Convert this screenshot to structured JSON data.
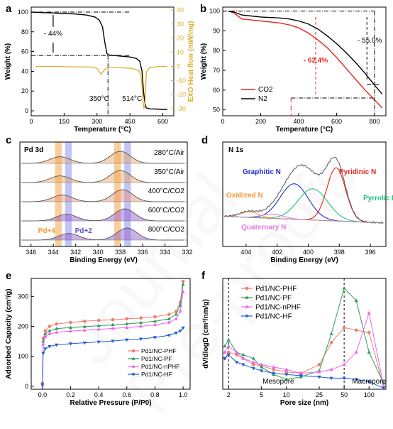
{
  "panels": {
    "a": {
      "letter": "a"
    },
    "b": {
      "letter": "b"
    },
    "c": {
      "letter": "c"
    },
    "d": {
      "letter": "d"
    },
    "e": {
      "letter": "e"
    },
    "f": {
      "letter": "f"
    }
  },
  "watermark": "Journal Pre-proofs",
  "chart_data": [
    {
      "panel": "a",
      "type": "line",
      "xlabel": "Temperature (°C)",
      "ylabel": "Weight (%)",
      "y2label": "EXO Heat flow (mW/mg)",
      "xlim": [
        0,
        650
      ],
      "ylim": [
        -5,
        105
      ],
      "y2lim": [
        -35,
        42
      ],
      "xticks": [
        0,
        150,
        300,
        450,
        600
      ],
      "yticks": [
        0,
        20,
        40,
        60,
        80,
        100
      ],
      "y2ticks": [
        -30,
        -20,
        -10,
        0,
        10,
        20,
        30,
        40
      ],
      "annotations": [
        "- 44%",
        "350°C",
        "514°C"
      ],
      "series": [
        {
          "axis": "left",
          "color": "#000000",
          "x": [
            0,
            50,
            100,
            150,
            200,
            250,
            290,
            310,
            325,
            335,
            345,
            355,
            400,
            450,
            480,
            495,
            505,
            512,
            518,
            525,
            540,
            570,
            600,
            620
          ],
          "y": [
            100,
            99.5,
            99,
            98.5,
            98,
            97,
            95,
            92,
            85,
            70,
            58,
            56.5,
            55.5,
            54.5,
            53,
            50,
            40,
            20,
            8,
            3,
            2,
            1.8,
            1.5,
            1.5
          ]
        },
        {
          "axis": "right",
          "color": "#E0AC2A",
          "x": [
            20,
            100,
            200,
            280,
            300,
            318,
            326,
            340,
            360,
            400,
            460,
            490,
            500,
            506,
            510,
            514,
            518,
            525,
            540,
            580,
            620
          ],
          "y": [
            0,
            0,
            -0.3,
            -0.5,
            -1.5,
            -5.5,
            -4,
            -1.5,
            -0.8,
            -0.8,
            -1.5,
            -3,
            -6,
            -15,
            -25,
            -30,
            -28,
            -4,
            -1,
            0,
            0
          ]
        }
      ]
    },
    {
      "panel": "b",
      "type": "line",
      "xlabel": "Temperature (°C)",
      "ylabel": "Weight (%)",
      "xlim": [
        0,
        860
      ],
      "ylim": [
        47,
        102
      ],
      "xticks": [
        0,
        200,
        400,
        600,
        800
      ],
      "yticks": [
        50,
        60,
        70,
        80,
        90,
        100
      ],
      "annotations": [
        "- 62.4%",
        "- 55.0%"
      ],
      "series": [
        {
          "name": "CO2",
          "color": "#E8231C",
          "x": [
            30,
            60,
            100,
            150,
            200,
            300,
            350,
            400,
            450,
            500,
            550,
            600,
            650,
            700,
            750,
            800,
            840
          ],
          "y": [
            100,
            99,
            96,
            95.5,
            95,
            94,
            93,
            91.5,
            89,
            85.5,
            81.5,
            76.5,
            71,
            65.5,
            60,
            55,
            51
          ]
        },
        {
          "name": "N2",
          "color": "#000000",
          "x": [
            30,
            60,
            100,
            150,
            200,
            300,
            350,
            400,
            450,
            500,
            550,
            600,
            650,
            700,
            750,
            800,
            840
          ],
          "y": [
            100,
            99.5,
            98,
            97.5,
            97,
            96.5,
            96,
            95,
            93.5,
            91,
            87.5,
            83.5,
            79,
            74,
            68.5,
            62.5,
            58
          ]
        }
      ]
    },
    {
      "panel": "c",
      "type": "line",
      "xlabel": "Binding Energy (eV)",
      "title": "Pd 3d",
      "xlim": [
        347,
        332
      ],
      "xticks": [
        346,
        344,
        342,
        340,
        338,
        336,
        334,
        332
      ],
      "band_labels": [
        "Pd+4",
        "Pd+2"
      ],
      "series": [
        {
          "name": "280°C/Air",
          "peaks": [
            343.4,
            338.0
          ]
        },
        {
          "name": "350°C/Air",
          "peaks": [
            343.4,
            338.0
          ]
        },
        {
          "name": "400°C/CO2",
          "peaks": [
            343.2,
            337.8
          ]
        },
        {
          "name": "600°C/CO2",
          "peaks": [
            342.8,
            337.6
          ]
        },
        {
          "name": "800°C/CO2",
          "peaks": [
            342.6,
            337.4
          ]
        }
      ]
    },
    {
      "panel": "d",
      "type": "line",
      "title": "N 1s",
      "xlabel": "Binding Energy (eV)",
      "xlim": [
        405.5,
        395
      ],
      "xticks": [
        404,
        402,
        400,
        398,
        396
      ],
      "components": [
        {
          "name": "Graphitic N",
          "center": 400.9,
          "color": "#1F2FD0"
        },
        {
          "name": "Pyridinic N",
          "center": 398.2,
          "color": "#E8231C"
        },
        {
          "name": "Pyrrolic N",
          "center": 399.7,
          "color": "#22C47A"
        },
        {
          "name": "Oxidized N",
          "center": 403.8,
          "color": "#F39A2E"
        },
        {
          "name": "Quaternary N",
          "center": 402.3,
          "color": "#E07BE0"
        }
      ]
    },
    {
      "panel": "e",
      "type": "line",
      "xlabel": "Relative Pressure (P/P0)",
      "ylabel": "Adsorbed Capacity (cm³/g)",
      "xlim": [
        -0.08,
        1.05
      ],
      "ylim": [
        -10,
        360
      ],
      "xticks": [
        0.0,
        0.2,
        0.4,
        0.6,
        0.8,
        1.0
      ],
      "yticks": [
        0,
        100,
        200,
        300
      ],
      "x": [
        0.0,
        0.005,
        0.02,
        0.05,
        0.1,
        0.2,
        0.3,
        0.4,
        0.5,
        0.6,
        0.7,
        0.8,
        0.9,
        0.95,
        0.98,
        1.0
      ],
      "series": [
        {
          "name": "Pd1/NC-PHF",
          "color": "#F07E70",
          "marker": "circle",
          "values": [
            10,
            160,
            185,
            200,
            208,
            213,
            217,
            220,
            222,
            225,
            228,
            232,
            240,
            250,
            280,
            350
          ]
        },
        {
          "name": "Pd1/NC-PF",
          "color": "#2E9F5A",
          "marker": "triangle",
          "values": [
            5,
            150,
            175,
            185,
            192,
            196,
            199,
            202,
            205,
            208,
            212,
            217,
            225,
            240,
            270,
            340
          ]
        },
        {
          "name": "Pd1/NC-nPHF",
          "color": "#EE66EE",
          "marker": "triangle",
          "values": [
            5,
            140,
            165,
            175,
            180,
            184,
            187,
            190,
            193,
            196,
            200,
            205,
            213,
            225,
            250,
            315
          ]
        },
        {
          "name": "Pd1/NC-HF",
          "color": "#1F60D0",
          "marker": "triangle-down",
          "values": [
            5,
            110,
            125,
            133,
            138,
            142,
            145,
            148,
            151,
            155,
            158,
            163,
            170,
            178,
            185,
            195
          ]
        }
      ]
    },
    {
      "panel": "f",
      "type": "line",
      "xlabel": "Pore size (nm)",
      "ylabel": "dV/dlogD (cm³/nm/g)",
      "xscale": "log",
      "xticks": [
        2,
        5,
        10,
        25,
        50,
        100
      ],
      "regions": [
        "Mesopore",
        "Macropore"
      ],
      "series": [
        {
          "name": "Pd1/NC-PHF",
          "color": "#F07E70",
          "marker": "circle",
          "x": [
            1.8,
            2,
            2.5,
            3,
            4,
            5,
            7,
            10,
            15,
            25,
            35,
            50,
            70,
            100,
            150
          ],
          "y": [
            0.25,
            0.3,
            0.28,
            0.25,
            0.2,
            0.19,
            0.16,
            0.14,
            0.13,
            0.2,
            0.38,
            0.5,
            0.48,
            0.46,
            0.02
          ]
        },
        {
          "name": "Pd1/NC-PF",
          "color": "#2E9F5A",
          "marker": "triangle",
          "x": [
            1.8,
            2,
            2.5,
            3,
            4,
            5,
            7,
            10,
            15,
            25,
            35,
            50,
            70,
            100,
            150
          ],
          "y": [
            0.35,
            0.4,
            0.3,
            0.28,
            0.25,
            0.18,
            0.12,
            0.08,
            0.1,
            0.15,
            0.45,
            0.82,
            0.72,
            0.3,
            0.05
          ]
        },
        {
          "name": "Pd1/NC-nPHF",
          "color": "#EE66EE",
          "marker": "triangle",
          "x": [
            1.8,
            2,
            2.5,
            3,
            4,
            5,
            7,
            10,
            15,
            25,
            35,
            50,
            70,
            100,
            150
          ],
          "y": [
            0.3,
            0.35,
            0.3,
            0.25,
            0.22,
            0.2,
            0.18,
            0.16,
            0.13,
            0.14,
            0.16,
            0.2,
            0.3,
            0.62,
            0.03
          ]
        },
        {
          "name": "Pd1/NC-HF",
          "color": "#1F60D0",
          "marker": "triangle-down",
          "x": [
            1.8,
            2,
            2.5,
            3,
            4,
            5,
            7,
            10,
            15,
            25,
            35,
            50,
            70,
            100,
            150
          ],
          "y": [
            0.25,
            0.28,
            0.22,
            0.2,
            0.17,
            0.15,
            0.13,
            0.12,
            0.11,
            0.1,
            0.09,
            0.09,
            0.08,
            0.06,
            0.01
          ]
        }
      ]
    }
  ]
}
